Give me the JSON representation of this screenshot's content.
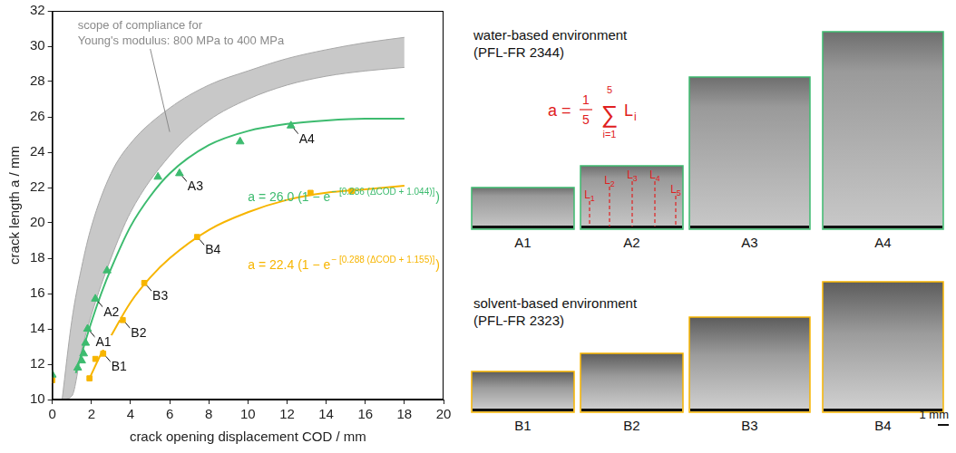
{
  "chart_data": {
    "type": "scatter",
    "xlabel": "crack opening displacement COD / mm",
    "ylabel": "crack length a / mm",
    "xlim": [
      0,
      20
    ],
    "xticks": [
      0,
      2,
      4,
      6,
      8,
      10,
      12,
      14,
      16,
      18,
      20
    ],
    "ylim": [
      10,
      32
    ],
    "yticks": [
      10,
      12,
      14,
      16,
      18,
      20,
      22,
      24,
      26,
      28,
      30,
      32
    ],
    "grid": false,
    "band": {
      "label": [
        "scope of compliance for",
        "Young's modulus: 800 MPa to 400 MPa"
      ],
      "color": "#c8c8c8",
      "x": [
        0.5,
        1,
        1.5,
        2,
        3,
        4,
        6,
        8,
        10,
        12,
        14,
        16,
        18
      ],
      "upper": [
        10,
        14.5,
        17.5,
        19.8,
        22.8,
        24.5,
        26.5,
        27.8,
        28.6,
        29.3,
        29.8,
        30.2,
        30.5
      ],
      "lower": [
        10,
        10.2,
        12.8,
        14.8,
        18,
        20.6,
        23.8,
        25.8,
        27,
        27.8,
        28.3,
        28.6,
        28.8
      ]
    },
    "series": [
      {
        "color": "#3dbb6f",
        "marker": "triangle",
        "x": [
          0,
          1.3,
          1.5,
          1.6,
          1.7,
          1.8,
          2.2,
          2.8,
          5.4,
          6.5,
          9.6,
          12.2
        ],
        "values": [
          11.4,
          11.8,
          12.2,
          12.6,
          13.2,
          14.0,
          15.7,
          17.3,
          22.6,
          22.8,
          24.6,
          25.5
        ],
        "point_labels": [
          null,
          null,
          null,
          null,
          null,
          "A1",
          "A2",
          null,
          null,
          "A3",
          null,
          "A4"
        ],
        "fit": {
          "line_style": "solid",
          "x": [
            1.2,
            1.5,
            2,
            2.5,
            3,
            4,
            5,
            6,
            8,
            10,
            12,
            14,
            16,
            18
          ],
          "values": [
            11.5,
            12.6,
            14.4,
            16.0,
            17.4,
            19.8,
            21.5,
            22.8,
            24.4,
            25.2,
            25.6,
            25.8,
            25.9,
            25.9
          ]
        },
        "equation": {
          "base": "a = 26.0 (1 − e",
          "exponent": "− [0.286 (ΔCOD + 1.044)]",
          "close": ")"
        }
      },
      {
        "color": "#f7b500",
        "marker": "square",
        "x": [
          0,
          1.9,
          2.2,
          2.6,
          3.6,
          4.7,
          7.4,
          13.2,
          15.3
        ],
        "values": [
          11.1,
          11.2,
          12.3,
          12.6,
          14.5,
          16.6,
          19.2,
          21.7,
          21.8
        ],
        "point_labels": [
          null,
          null,
          null,
          "B1",
          "B2",
          "B3",
          "B4",
          null,
          null
        ],
        "fit": {
          "line_style": "solid",
          "x": [
            1.9,
            2.5,
            3,
            4,
            5,
            6,
            8,
            10,
            12,
            14,
            16,
            18
          ],
          "values": [
            11.2,
            12.6,
            13.6,
            15.5,
            16.9,
            18.0,
            19.6,
            20.6,
            21.3,
            21.7,
            21.9,
            22.1
          ]
        },
        "equation": {
          "base": "a = 22.4 (1 − e",
          "exponent": "− [0.288 (ΔCOD + 1.155)]",
          "close": ")"
        }
      }
    ]
  },
  "images": {
    "panels": [
      {
        "title": "water-based environment",
        "subtitle": "(PFL-FR 2344)",
        "color": "#3dbb6f",
        "labels": [
          "A1",
          "A2",
          "A3",
          "A4"
        ]
      },
      {
        "title": "solvent-based environment",
        "subtitle": "(PFL-FR 2323)",
        "color": "#f7b500",
        "labels": [
          "B1",
          "B2",
          "B3",
          "B4"
        ]
      }
    ],
    "formula": {
      "lhs": "a =",
      "numerator": 1,
      "denominator": 5,
      "operator": "∑",
      "upper": 5,
      "lower": "i=1",
      "term": "L",
      "subscript": "i",
      "color": "#e02020"
    },
    "measure_labels": [
      {
        "text": "L",
        "index": 1
      },
      {
        "text": "L",
        "index": 2
      },
      {
        "text": "L",
        "index": 3
      },
      {
        "text": "L",
        "index": 4
      },
      {
        "text": "L",
        "index": 5
      }
    ],
    "scale_bar": "1 mm"
  }
}
